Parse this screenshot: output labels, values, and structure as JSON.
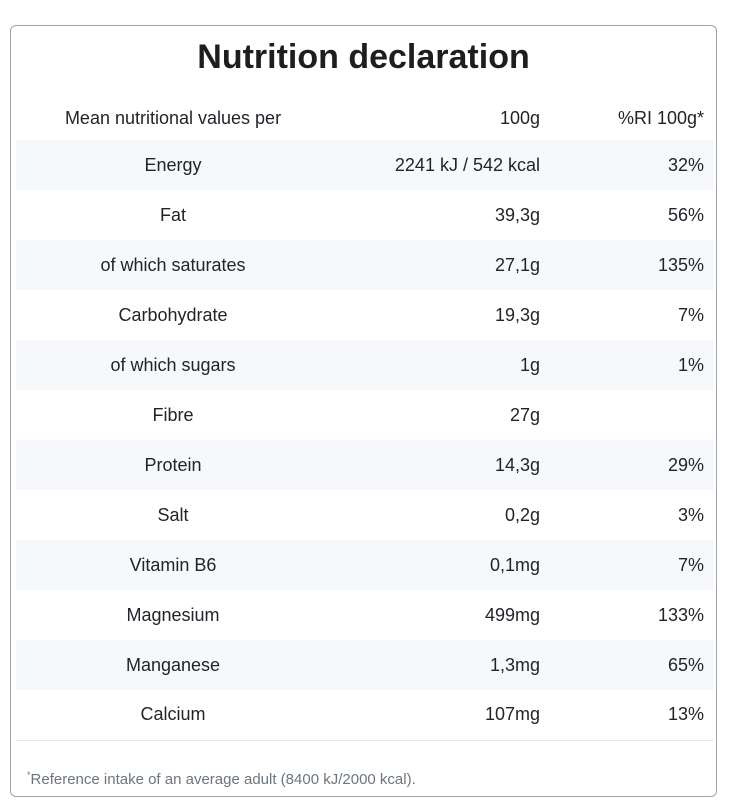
{
  "title": "Nutrition declaration",
  "header": {
    "name": "Mean nutritional values per",
    "value": "100g",
    "ri": "%RI 100g*"
  },
  "rows": [
    {
      "name": "Energy",
      "value": "2241 kJ / 542 kcal",
      "ri": "32%"
    },
    {
      "name": "Fat",
      "value": "39,3g",
      "ri": "56%"
    },
    {
      "name": "of which saturates",
      "value": "27,1g",
      "ri": "135%"
    },
    {
      "name": "Carbohydrate",
      "value": "19,3g",
      "ri": "7%"
    },
    {
      "name": "of which sugars",
      "value": "1g",
      "ri": "1%"
    },
    {
      "name": "Fibre",
      "value": "27g",
      "ri": ""
    },
    {
      "name": "Protein",
      "value": "14,3g",
      "ri": "29%"
    },
    {
      "name": "Salt",
      "value": "0,2g",
      "ri": "3%"
    },
    {
      "name": "Vitamin B6",
      "value": "0,1mg",
      "ri": "7%"
    },
    {
      "name": "Magnesium",
      "value": "499mg",
      "ri": "133%"
    },
    {
      "name": "Manganese",
      "value": "1,3mg",
      "ri": "65%"
    },
    {
      "name": "Calcium",
      "value": "107mg",
      "ri": "13%"
    }
  ],
  "footnote": {
    "mark": "*",
    "text": "Reference intake of an average adult (8400 kJ/2000 kcal)."
  }
}
